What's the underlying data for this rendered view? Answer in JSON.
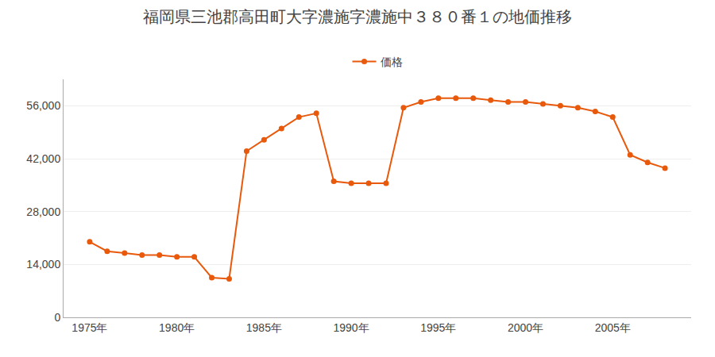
{
  "chart_data": {
    "type": "line",
    "title": "福岡県三池郡高田町大字濃施字濃施中３８０番１の地価推移",
    "x": [
      1975,
      1976,
      1977,
      1978,
      1979,
      1980,
      1981,
      1982,
      1983,
      1984,
      1985,
      1986,
      1987,
      1988,
      1989,
      1990,
      1991,
      1992,
      1993,
      1994,
      1995,
      1996,
      1997,
      1998,
      1999,
      2000,
      2001,
      2002,
      2003,
      2004,
      2005,
      2006,
      2007,
      2008
    ],
    "series": [
      {
        "name": "価格",
        "color": "#E8590C",
        "marker": "circle",
        "values": [
          20000,
          17500,
          17000,
          16500,
          16500,
          16000,
          16000,
          10500,
          10200,
          44000,
          47000,
          50000,
          53000,
          54000,
          36000,
          35500,
          35500,
          35500,
          55500,
          57000,
          58000,
          58000,
          58000,
          57500,
          57000,
          57000,
          56500,
          56000,
          55500,
          54500,
          53000,
          43000,
          41000,
          39500
        ]
      }
    ],
    "xlim": [
      1973.5,
      2009.5
    ],
    "xticks": [
      {
        "value": 1975,
        "label": "1975年"
      },
      {
        "value": 1980,
        "label": "1980年"
      },
      {
        "value": 1985,
        "label": "1985年"
      },
      {
        "value": 1990,
        "label": "1990年"
      },
      {
        "value": 1995,
        "label": "1995年"
      },
      {
        "value": 2000,
        "label": "2000年"
      },
      {
        "value": 2005,
        "label": "2005年"
      }
    ],
    "ylim": [
      0,
      63000
    ],
    "yticks": [
      0,
      {
        "value": 14000,
        "label": "14,000"
      },
      {
        "value": 28000,
        "label": "28,000"
      },
      {
        "value": 42000,
        "label": "42,000"
      },
      {
        "value": 56000,
        "label": "56,000"
      }
    ],
    "grid": true,
    "legend": "top"
  }
}
